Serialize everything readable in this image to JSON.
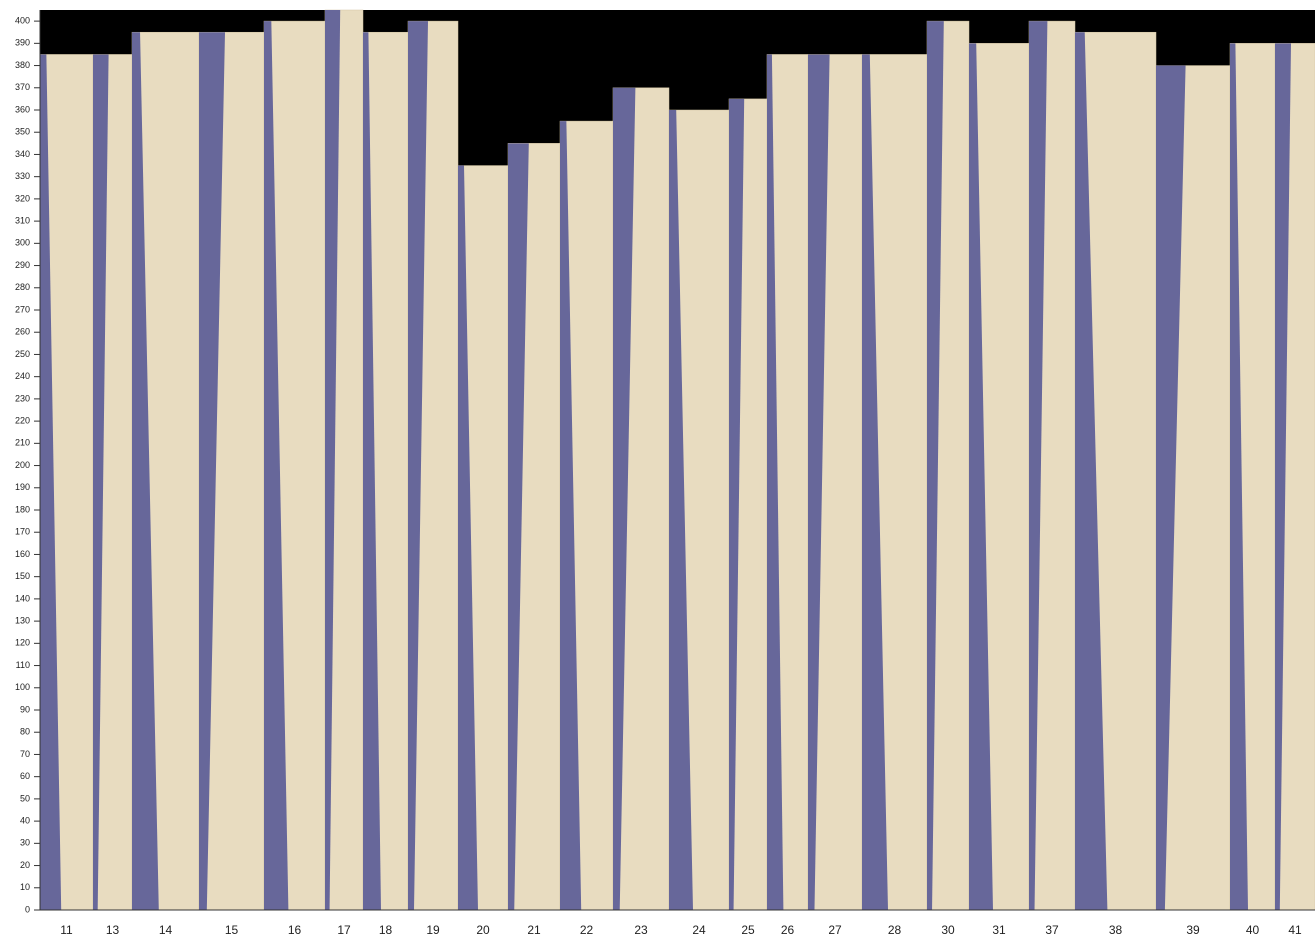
{
  "axis": {
    "ylim": [
      0,
      405
    ],
    "yticks": [
      0,
      10,
      20,
      30,
      40,
      50,
      60,
      70,
      80,
      90,
      100,
      110,
      120,
      130,
      140,
      150,
      160,
      170,
      180,
      190,
      200,
      210,
      220,
      230,
      240,
      250,
      260,
      270,
      280,
      290,
      300,
      310,
      320,
      330,
      340,
      350,
      360,
      370,
      380,
      390,
      400
    ]
  },
  "boards": {
    "labels": [
      "11",
      "13",
      "14",
      "15",
      "16",
      "17",
      "18",
      "19",
      "20",
      "21",
      "22",
      "23",
      "24",
      "25",
      "26",
      "27",
      "28",
      "30",
      "31",
      "37",
      "38",
      "39",
      "40",
      "41"
    ],
    "heights": [
      385,
      385,
      395,
      395,
      400,
      405,
      395,
      400,
      335,
      345,
      355,
      370,
      360,
      365,
      385,
      385,
      385,
      400,
      390,
      400,
      395,
      380,
      390,
      390
    ]
  }
}
